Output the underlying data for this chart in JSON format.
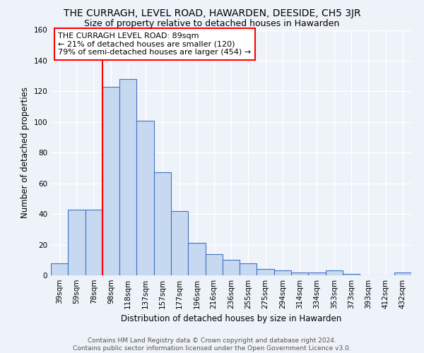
{
  "title": "THE CURRAGH, LEVEL ROAD, HAWARDEN, DEESIDE, CH5 3JR",
  "subtitle": "Size of property relative to detached houses in Hawarden",
  "xlabel": "Distribution of detached houses by size in Hawarden",
  "ylabel": "Number of detached properties",
  "categories": [
    "39sqm",
    "59sqm",
    "78sqm",
    "98sqm",
    "118sqm",
    "137sqm",
    "157sqm",
    "177sqm",
    "196sqm",
    "216sqm",
    "236sqm",
    "255sqm",
    "275sqm",
    "294sqm",
    "314sqm",
    "334sqm",
    "353sqm",
    "373sqm",
    "393sqm",
    "412sqm",
    "432sqm"
  ],
  "values": [
    8,
    43,
    43,
    123,
    128,
    101,
    67,
    42,
    21,
    14,
    10,
    8,
    4,
    3,
    2,
    2,
    3,
    1,
    0,
    0,
    2
  ],
  "bar_color": "#c6d9f1",
  "bar_edge_color": "#4472c4",
  "property_line_x": 2.5,
  "annotation_text": "THE CURRAGH LEVEL ROAD: 89sqm\n← 21% of detached houses are smaller (120)\n79% of semi-detached houses are larger (454) →",
  "annotation_box_color": "white",
  "annotation_box_edge_color": "red",
  "red_line_color": "red",
  "ylim": [
    0,
    160
  ],
  "yticks": [
    0,
    20,
    40,
    60,
    80,
    100,
    120,
    140,
    160
  ],
  "footer_line1": "Contains HM Land Registry data © Crown copyright and database right 2024.",
  "footer_line2": "Contains public sector information licensed under the Open Government Licence v3.0.",
  "bg_color": "#eef2f9",
  "grid_color": "white",
  "title_fontsize": 10,
  "subtitle_fontsize": 9,
  "annotation_fontsize": 8,
  "axis_label_fontsize": 8.5,
  "tick_fontsize": 7.5,
  "footer_fontsize": 6.5
}
